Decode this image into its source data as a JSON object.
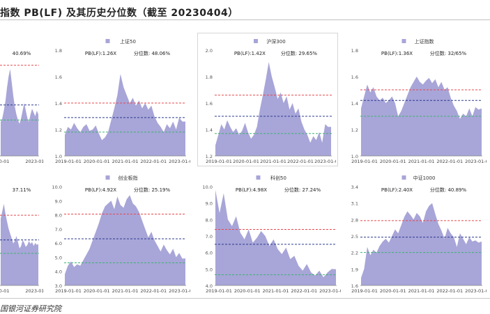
{
  "page": {
    "title": "指数 PB(LF) 及其历史分位数（截至 20230404）",
    "source": "国银河证券研究院"
  },
  "colors": {
    "area": "#a8a5d8",
    "upper_band": "#e8474b",
    "mean": "#2b3a8f",
    "lower_band": "#3cb371"
  },
  "chart_data": [
    {
      "type": "area",
      "title": "",
      "pb_label": "",
      "pct_label": "40.69%",
      "xlabel": "",
      "ylabel": "",
      "x_ticks": [
        "0-01",
        "2023-01"
      ],
      "y_ticks": [],
      "ylim": [
        1.16,
        1.72
      ],
      "lines": {
        "upper": 1.64,
        "mean": 1.43,
        "lower": 1.35
      },
      "series": [
        {
          "values": [
            1.34,
            1.36,
            1.4,
            1.45,
            1.52,
            1.58,
            1.62,
            1.55,
            1.48,
            1.42,
            1.38,
            1.35,
            1.33,
            1.36,
            1.4,
            1.44,
            1.4,
            1.36,
            1.34,
            1.38,
            1.41,
            1.39,
            1.37,
            1.4,
            1.38
          ]
        }
      ]
    },
    {
      "type": "area",
      "title": "上证50",
      "pb_label": "PB(LF):1.26X",
      "pct_label": "分位数:  48.06%",
      "xlabel": "",
      "ylabel": "",
      "x_ticks": [
        "2019-01-01",
        "2020-01-01",
        "2021-01-01",
        "2022-01-01",
        "2023-01-01"
      ],
      "y_ticks": [
        "1.8",
        "1.6",
        "1.4",
        "1.2",
        "1.0"
      ],
      "ylim": [
        1.0,
        1.8
      ],
      "lines": {
        "upper": 1.4,
        "mean": 1.29,
        "lower": 1.18
      },
      "series": [
        {
          "values": [
            1.16,
            1.22,
            1.2,
            1.25,
            1.21,
            1.18,
            1.22,
            1.24,
            1.19,
            1.2,
            1.23,
            1.17,
            1.12,
            1.14,
            1.18,
            1.27,
            1.36,
            1.46,
            1.62,
            1.52,
            1.46,
            1.4,
            1.44,
            1.38,
            1.42,
            1.36,
            1.4,
            1.35,
            1.38,
            1.3,
            1.25,
            1.22,
            1.18,
            1.24,
            1.21,
            1.26,
            1.2,
            1.29,
            1.26,
            1.26
          ]
        }
      ]
    },
    {
      "type": "area",
      "title": "沪深300",
      "pb_label": "PB(LF):1.42X",
      "pct_label": "分位数:  29.65%",
      "xlabel": "",
      "ylabel": "",
      "x_ticks": [
        "2019-01-01",
        "2020-01-01",
        "2021-01-01",
        "2022-01-01",
        "2023-01-01"
      ],
      "y_ticks": [
        "2.0",
        "1.8",
        "1.6",
        "1.4",
        "1.2"
      ],
      "ylim": [
        1.2,
        2.0
      ],
      "lines": {
        "upper": 1.66,
        "mean": 1.5,
        "lower": 1.37
      },
      "series": [
        {
          "values": [
            1.28,
            1.36,
            1.44,
            1.4,
            1.47,
            1.42,
            1.38,
            1.41,
            1.36,
            1.39,
            1.45,
            1.38,
            1.33,
            1.36,
            1.42,
            1.55,
            1.66,
            1.78,
            1.91,
            1.8,
            1.72,
            1.63,
            1.68,
            1.6,
            1.65,
            1.55,
            1.6,
            1.52,
            1.56,
            1.46,
            1.4,
            1.36,
            1.3,
            1.35,
            1.32,
            1.38,
            1.3,
            1.44,
            1.42,
            1.42
          ]
        }
      ]
    },
    {
      "type": "area",
      "title": "上证指数",
      "pb_label": "PB(LF):1.36X",
      "pct_label": "分位数:  32/65%",
      "xlabel": "",
      "ylabel": "",
      "x_ticks": [
        "2019-01-01",
        "2020-01-01",
        "2021-01-01",
        "2022-01-01",
        "2023-01-01"
      ],
      "y_ticks": [
        "1.8",
        "1.6",
        "1.4",
        "1.2",
        "1.0"
      ],
      "ylim": [
        1.0,
        1.8
      ],
      "lines": {
        "upper": 1.5,
        "mean": 1.42,
        "lower": 1.3
      },
      "series": [
        {
          "values": [
            1.36,
            1.45,
            1.54,
            1.48,
            1.52,
            1.45,
            1.42,
            1.44,
            1.4,
            1.42,
            1.45,
            1.4,
            1.3,
            1.34,
            1.4,
            1.46,
            1.52,
            1.56,
            1.6,
            1.56,
            1.54,
            1.57,
            1.59,
            1.55,
            1.58,
            1.52,
            1.56,
            1.5,
            1.52,
            1.44,
            1.38,
            1.34,
            1.28,
            1.32,
            1.3,
            1.36,
            1.3,
            1.37,
            1.35,
            1.36
          ]
        }
      ]
    },
    {
      "type": "area",
      "title": "",
      "pb_label": "",
      "pct_label": "37.11%",
      "xlabel": "",
      "ylabel": "",
      "x_ticks": [
        "0-01",
        "2023-01"
      ],
      "y_ticks": [],
      "ylim": [
        2.8,
        4.8
      ],
      "lines": {
        "upper": 4.22,
        "mean": 3.72,
        "lower": 3.45
      },
      "series": [
        {
          "values": [
            4.15,
            4.3,
            4.45,
            4.25,
            4.1,
            3.95,
            3.85,
            3.75,
            3.65,
            3.7,
            3.8,
            3.68,
            3.55,
            3.6,
            3.72,
            3.66,
            3.58,
            3.62,
            3.7,
            3.64,
            3.68,
            3.6,
            3.66,
            3.62,
            3.64
          ]
        }
      ]
    },
    {
      "type": "area",
      "title": "创业板指",
      "pb_label": "PB(LF):4.92X",
      "pct_label": "分位数:  25.19%",
      "xlabel": "",
      "ylabel": "",
      "x_ticks": [
        "2019-01-01",
        "2020-01-01",
        "2021-01-01",
        "2022-01-01",
        "2023-01-01"
      ],
      "y_ticks": [
        "10.0",
        "9.0",
        "8.0",
        "7.0",
        "6.0",
        "5.0",
        "4.0",
        "3.0"
      ],
      "ylim": [
        3.0,
        10.0
      ],
      "lines": {
        "upper": 8.05,
        "mean": 6.3,
        "lower": 4.6
      },
      "series": [
        {
          "values": [
            3.8,
            4.4,
            4.7,
            4.3,
            4.5,
            4.4,
            4.8,
            5.2,
            5.6,
            6.2,
            6.8,
            7.4,
            8.1,
            8.6,
            8.8,
            9.0,
            8.4,
            9.3,
            8.7,
            8.5,
            9.1,
            9.4,
            8.8,
            8.6,
            8.2,
            7.6,
            7.0,
            6.4,
            6.8,
            6.2,
            5.8,
            5.4,
            5.9,
            5.5,
            5.2,
            5.6,
            5.0,
            5.3,
            4.9,
            4.92
          ]
        }
      ]
    },
    {
      "type": "area",
      "title": "科创50",
      "pb_label": "PB(LF):4.98X",
      "pct_label": "分位数:  27.24%",
      "xlabel": "",
      "ylabel": "",
      "x_ticks": [
        "2019-01-01",
        "2020-01-01",
        "2021-01-01",
        "2022-01-01",
        "2023-01-01"
      ],
      "y_ticks": [
        "10.0",
        "9.0",
        "8.0",
        "7.0",
        "6.0",
        "5.0",
        "4.0"
      ],
      "ylim": [
        4.0,
        10.0
      ],
      "lines": {
        "upper": 7.4,
        "mean": 6.5,
        "lower": 4.65
      },
      "series": [
        {
          "values": [
            9.8,
            8.4,
            9.6,
            8.0,
            7.6,
            8.2,
            7.2,
            6.8,
            7.4,
            6.6,
            6.9,
            7.3,
            7.0,
            6.4,
            6.8,
            6.2,
            5.9,
            6.3,
            5.6,
            5.8,
            5.2,
            4.9,
            5.3,
            4.8,
            4.6,
            4.9,
            4.5,
            4.8,
            5.0,
            4.98
          ]
        }
      ]
    },
    {
      "type": "area",
      "title": "中证1000",
      "pb_label": "PB(LF):2.40X",
      "pct_label": "分位数:  40.89%",
      "xlabel": "",
      "ylabel": "",
      "x_ticks": [
        "2019-01-01",
        "2020-01-01",
        "2021-01-01",
        "2022-01-01",
        "2023-01-01"
      ],
      "y_ticks": [
        "3.4",
        "3.1",
        "2.8",
        "2.5",
        "2.2",
        "1.9",
        "1.6"
      ],
      "ylim": [
        1.6,
        3.4
      ],
      "lines": {
        "upper": 2.78,
        "mean": 2.48,
        "lower": 2.2
      },
      "series": [
        {
          "values": [
            1.74,
            1.9,
            2.3,
            2.15,
            2.25,
            2.2,
            2.32,
            2.4,
            2.45,
            2.38,
            2.5,
            2.62,
            2.55,
            2.7,
            2.85,
            2.95,
            2.88,
            2.8,
            2.92,
            2.86,
            2.74,
            2.95,
            3.05,
            3.1,
            2.9,
            2.72,
            2.6,
            2.45,
            2.65,
            2.55,
            2.48,
            2.3,
            2.55,
            2.45,
            2.35,
            2.48,
            2.4,
            2.42,
            2.38,
            2.4
          ]
        }
      ]
    }
  ]
}
